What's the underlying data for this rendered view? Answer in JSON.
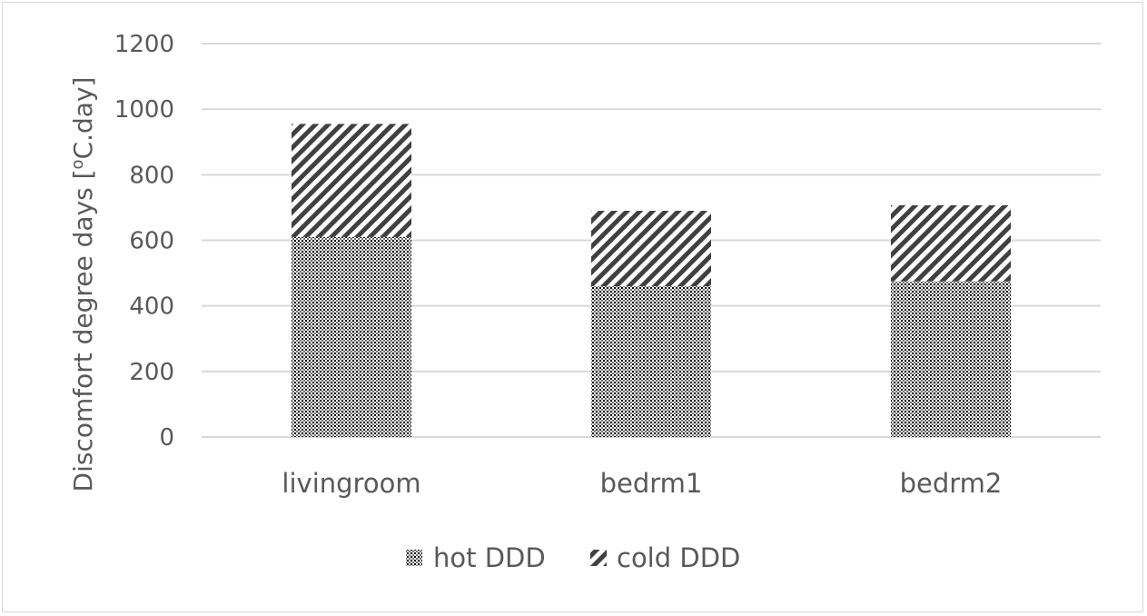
{
  "chart_data": {
    "type": "bar",
    "stacked": true,
    "categories": [
      "livingroom",
      "bedrm1",
      "bedrm2"
    ],
    "series": [
      {
        "name": "hot DDD",
        "values": [
          610,
          460,
          475
        ],
        "pattern": "dots"
      },
      {
        "name": "cold DDD",
        "values": [
          345,
          230,
          232
        ],
        "pattern": "diagonal-stripes"
      }
    ],
    "title": "",
    "xlabel": "",
    "ylabel_main": "Discomfort degree days [",
    "ylabel_sup": "o",
    "ylabel_tail": "C.day]",
    "ylim": [
      0,
      1200
    ],
    "yticks": [
      0,
      200,
      400,
      600,
      800,
      1000,
      1200
    ],
    "grid": true,
    "legend_position": "bottom",
    "colors": {
      "grid": "#d9d9d9",
      "text": "#595959",
      "pattern": "#000000",
      "stripe": "#404040"
    }
  }
}
